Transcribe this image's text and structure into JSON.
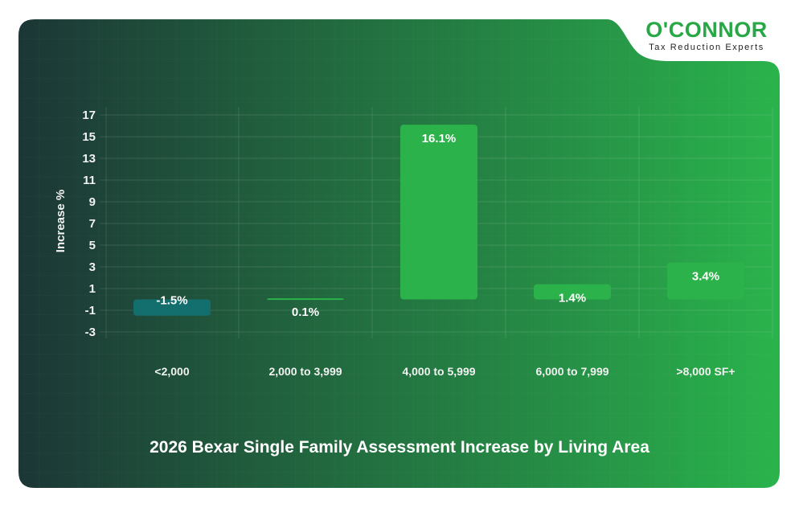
{
  "logo": {
    "brand": "O'CONNOR",
    "tagline": "Tax Reduction Experts"
  },
  "colors": {
    "background_start": "#1c3636",
    "background_end": "#2ab34c",
    "bar_positive": "#2bb24a",
    "bar_negative": "#136f6e",
    "logo_green": "#27a844"
  },
  "chart_data": {
    "type": "bar",
    "title": "2026 Bexar Single Family Assessment Increase by Living Area",
    "xlabel": "",
    "ylabel": "Increase %",
    "categories": [
      "<2,000",
      "2,000 to 3,999",
      "4,000 to 5,999",
      "6,000 to 7,999",
      ">8,000 SF+"
    ],
    "values": [
      -1.5,
      0.1,
      16.1,
      1.4,
      3.4
    ],
    "data_labels": [
      "-1.5%",
      "0.1%",
      "16.1%",
      "1.4%",
      "3.4%"
    ],
    "ylim": [
      -3,
      17
    ],
    "yticks": [
      "17",
      "15",
      "13",
      "11",
      "9",
      "7",
      "5",
      "3",
      "1",
      "-1",
      "-3"
    ],
    "grid": true,
    "legend": "none"
  }
}
